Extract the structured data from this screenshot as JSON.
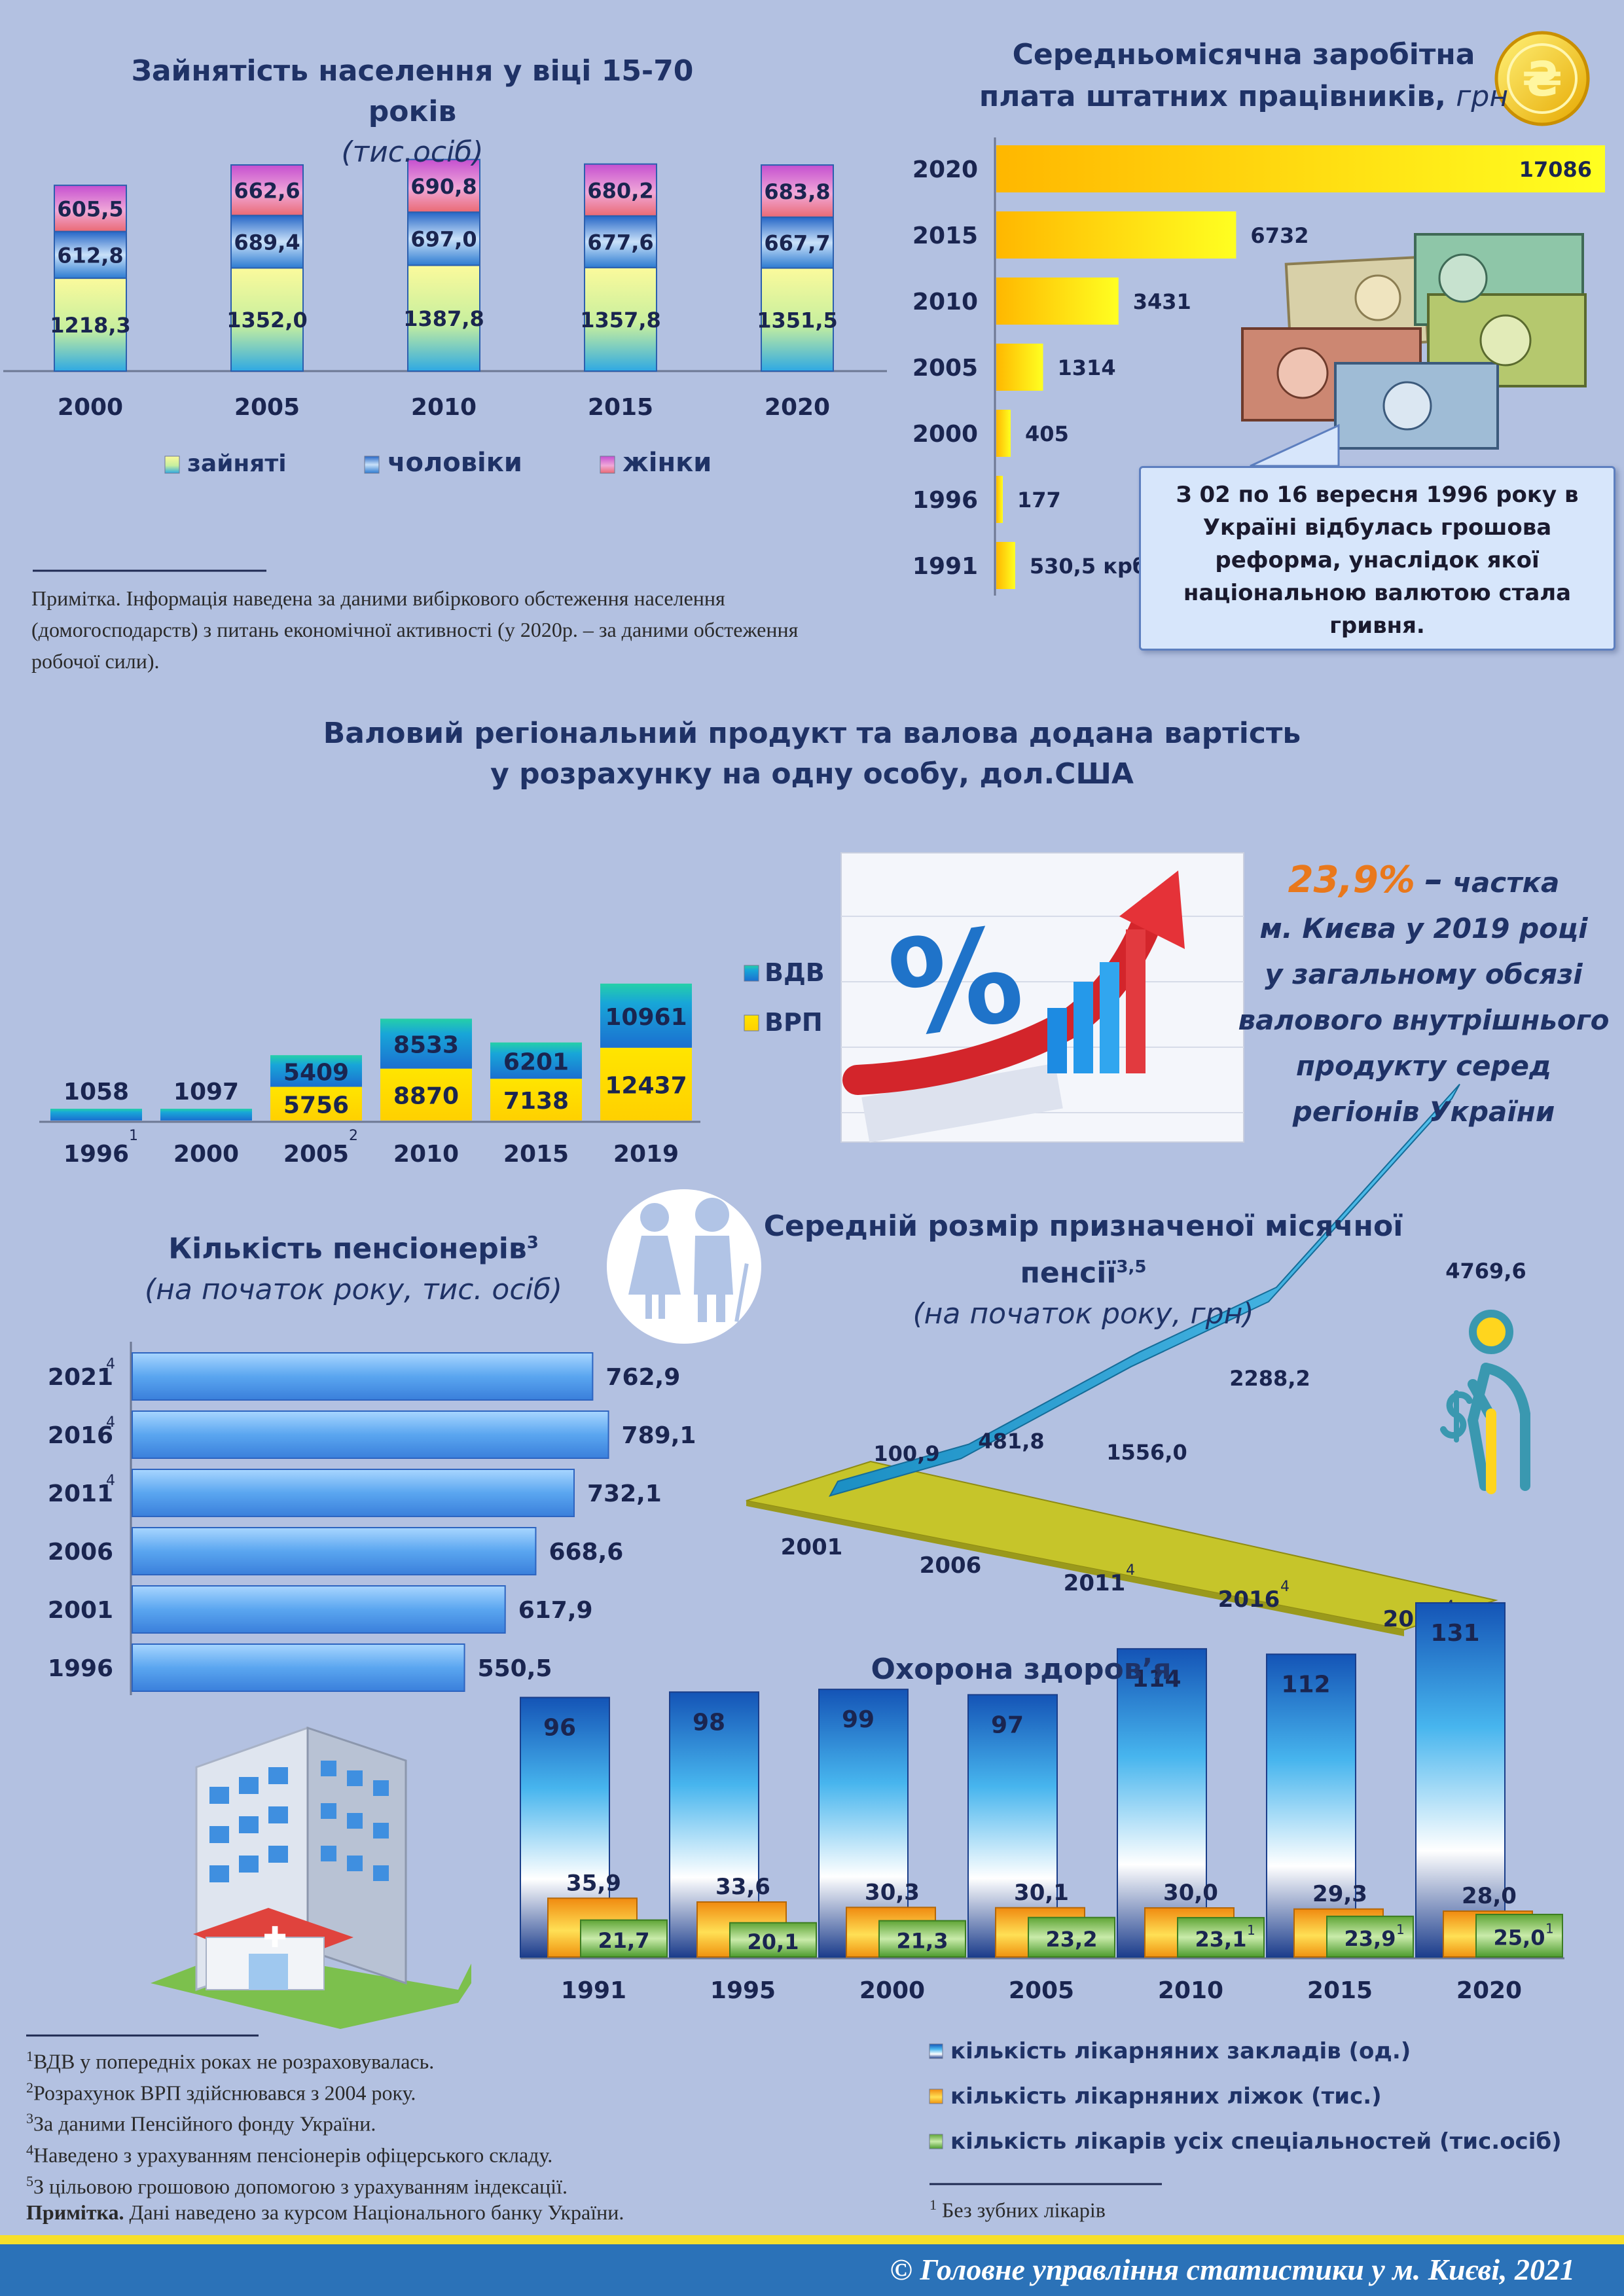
{
  "employment": {
    "title": "Зайнятість населення у віці 15-70 років",
    "subtitle": "(тис.осіб)",
    "chart_data": {
      "type": "bar",
      "categories": [
        "2000",
        "2005",
        "2010",
        "2015",
        "2020"
      ],
      "series": [
        {
          "name": "зайняті",
          "values": [
            1218.3,
            1352.0,
            1387.8,
            1357.8,
            1351.5
          ],
          "labels": [
            "1218,3",
            "1352,0",
            "1387,8",
            "1357,8",
            "1351,5"
          ]
        },
        {
          "name": "чоловіки",
          "values": [
            612.8,
            689.4,
            697.0,
            677.6,
            667.7
          ],
          "labels": [
            "612,8",
            "689,4",
            "697,0",
            "677,6",
            "667,7"
          ]
        },
        {
          "name": "жінки",
          "values": [
            605.5,
            662.6,
            690.8,
            680.2,
            683.8
          ],
          "labels": [
            "605,5",
            "662,6",
            "690,8",
            "680,2",
            "683,8"
          ]
        }
      ]
    },
    "note": "Примітка.  Інформація наведена за даними вибіркового обстеження населення (домогосподарств) з питань економічної активності (у 2020р. –  за даними обстеження робочої сили)."
  },
  "salary": {
    "title_main": "Середньомісячна заробітна плата штатних працівників,",
    "title_unit": "грн",
    "chart_data": {
      "type": "bar",
      "orientation": "horizontal",
      "categories": [
        "2020",
        "2015",
        "2010",
        "2005",
        "2000",
        "1996",
        "1991"
      ],
      "values": [
        17086,
        6732,
        3431,
        1314,
        405,
        177,
        530.5
      ],
      "labels": [
        "17086",
        "6732",
        "3431",
        "1314",
        "405",
        "177",
        "530,5 крб"
      ]
    },
    "callout": "З 02 по 16 вересня 1996 року в Україні відбулась грошова реформа, унаслідок якої національною валютою стала гривня.",
    "coin_symbol": "₴"
  },
  "gdp": {
    "title_line1": "Валовий регіональний продукт та валова додана вартість",
    "title_line2": "у розрахунку на одну особу, дол.США",
    "chart_data": {
      "type": "bar",
      "categories": [
        "1996",
        "2000",
        "2005",
        "2010",
        "2015",
        "2019"
      ],
      "category_sup": [
        "1",
        "",
        "2",
        "",
        "",
        ""
      ],
      "series": [
        {
          "name": "ВРП",
          "values": [
            null,
            null,
            5756,
            8870,
            7138,
            12437
          ]
        },
        {
          "name": "ВДВ",
          "values": [
            1058,
            1097,
            5409,
            8533,
            6201,
            10961
          ]
        }
      ]
    },
    "share_pct": "23,9%",
    "share_dash": "–",
    "share_text": [
      "частка",
      "м. Києва у  2019 році",
      "у загальному обсязі",
      "валового внутрішнього",
      "продукту серед",
      "регіонів України"
    ]
  },
  "pensioners": {
    "title": "Кількість пенсіонерів",
    "title_sup": "3",
    "subtitle": "(на початок року, тис. осіб)",
    "chart_data": {
      "type": "bar",
      "orientation": "horizontal",
      "categories": [
        "2021",
        "2016",
        "2011",
        "2006",
        "2001",
        "1996"
      ],
      "category_sup": [
        "4",
        "4",
        "4",
        "",
        "",
        ""
      ],
      "values": [
        762.9,
        789.1,
        732.1,
        668.6,
        617.9,
        550.5
      ],
      "labels": [
        "762,9",
        "789,1",
        "732,1",
        "668,6",
        "617,9",
        "550,5"
      ]
    }
  },
  "pension": {
    "title": "Середній розмір призначеної місячної пенсії",
    "title_sup": "3,5",
    "subtitle": "(на початок року, грн)",
    "chart_data": {
      "type": "line",
      "x": [
        "2001",
        "2006",
        "2011",
        "2016",
        "2021"
      ],
      "x_sup": [
        "",
        "",
        "4",
        "4",
        "4"
      ],
      "values": [
        100.9,
        481.8,
        1556.0,
        2288.2,
        4769.6
      ],
      "labels": [
        "100,9",
        "481,8",
        "1556,0",
        "2288,2",
        "4769,6"
      ]
    }
  },
  "health": {
    "title": "Охорона здоров’я",
    "chart_data": {
      "type": "bar",
      "categories": [
        "1991",
        "1995",
        "2000",
        "2005",
        "2010",
        "2015",
        "2020"
      ],
      "series": [
        {
          "name": "кількість лікарняних закладів (од.)",
          "values": [
            96,
            98,
            99,
            97,
            114,
            112,
            131
          ]
        },
        {
          "name": "кількість лікарняних ліжок (тис.)",
          "values": [
            35.9,
            33.6,
            30.3,
            30.1,
            30.0,
            29.3,
            28.0
          ],
          "labels": [
            "35,9",
            "33,6",
            "30,3",
            "30,1",
            "30,0",
            "29,3",
            "28,0"
          ]
        },
        {
          "name": "кількість лікарів усіх спеціальностей (тис.осіб)",
          "values": [
            21.7,
            20.1,
            21.3,
            23.2,
            23.1,
            23.9,
            25.0
          ],
          "labels": [
            "21,7",
            "20,1",
            "21,3",
            "23,2",
            "23,1",
            "23,9",
            "25,0"
          ],
          "sup": [
            "",
            "",
            "",
            "",
            "1",
            "1",
            "1"
          ]
        }
      ]
    },
    "footnote": "Без зубних лікарів",
    "cross_symbol": "✚"
  },
  "footnotes": [
    {
      "sup": "1",
      "text": "ВДВ у попередніх роках не розраховувалась."
    },
    {
      "sup": "2",
      "text": "Розрахунок ВРП здійснювався з 2004 року."
    },
    {
      "sup": "3",
      "text": "За даними Пенсійного фонду України."
    },
    {
      "sup": "4",
      "text": "Наведено з урахуванням пенсіонерів офіцерського складу."
    },
    {
      "sup": "5",
      "text": "З цільовою грошовою допомогою з урахуванням індексації."
    }
  ],
  "footnote_note_label": "Примітка.",
  "footnote_note_text": "Дані наведено за курсом Національного банку України.",
  "footer": "© Головне управління статистики у м. Києві, 2021",
  "colors": {
    "background": "#b3c1e1",
    "employed": "#f7f48a",
    "men": "#2f7fd2",
    "women": "#d86ccf",
    "salary_bar": "#ffd21a",
    "vdv": "#1aa7d6",
    "vrp": "#ffd400",
    "pension_bar": "#5aa9f0",
    "hospitals": "#2d86d8",
    "beds": "#f09a12",
    "doctors": "#7cbf4c"
  }
}
